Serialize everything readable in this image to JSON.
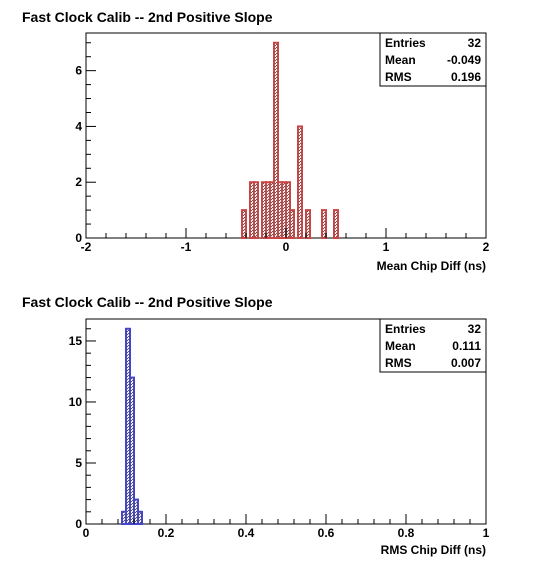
{
  "chart_data": [
    {
      "type": "bar",
      "title": "Fast Clock Calib -- 2nd Positive Slope",
      "xlabel": "Mean Chip Diff (ns)",
      "ylabel": "",
      "xlim": [
        -2,
        2
      ],
      "ylim": [
        0,
        7.35
      ],
      "x_ticks": [
        -2,
        -1,
        0,
        1,
        2
      ],
      "x_tick_labels": [
        "-2",
        "-1",
        "0",
        "1",
        "2"
      ],
      "y_ticks": [
        0,
        2,
        4,
        6
      ],
      "y_tick_labels": [
        "0",
        "2",
        "4",
        "6"
      ],
      "bin_width": 0.04,
      "bins": [
        {
          "x": -0.44,
          "count": 1
        },
        {
          "x": -0.36,
          "count": 2
        },
        {
          "x": -0.32,
          "count": 2
        },
        {
          "x": -0.24,
          "count": 2
        },
        {
          "x": -0.2,
          "count": 2
        },
        {
          "x": -0.16,
          "count": 2
        },
        {
          "x": -0.12,
          "count": 7
        },
        {
          "x": -0.08,
          "count": 2
        },
        {
          "x": -0.04,
          "count": 2
        },
        {
          "x": 0.0,
          "count": 2
        },
        {
          "x": 0.04,
          "count": 1
        },
        {
          "x": 0.12,
          "count": 4
        },
        {
          "x": 0.2,
          "count": 1
        },
        {
          "x": 0.36,
          "count": 1
        },
        {
          "x": 0.48,
          "count": 1
        }
      ],
      "color": "#cc4444",
      "stats": [
        {
          "label": "Entries",
          "value": "32"
        },
        {
          "label": "Mean",
          "value": "-0.049"
        },
        {
          "label": "RMS",
          "value": "0.196"
        }
      ]
    },
    {
      "type": "bar",
      "title": "Fast Clock Calib -- 2nd Positive Slope",
      "xlabel": "RMS Chip Diff (ns)",
      "ylabel": "",
      "xlim": [
        0,
        1
      ],
      "ylim": [
        0,
        16.8
      ],
      "x_ticks": [
        0,
        0.2,
        0.4,
        0.6,
        0.8,
        1
      ],
      "x_tick_labels": [
        "0",
        "0.2",
        "0.4",
        "0.6",
        "0.8",
        "1"
      ],
      "y_ticks": [
        0,
        5,
        10,
        15
      ],
      "y_tick_labels": [
        "0",
        "5",
        "10",
        "15"
      ],
      "bin_width": 0.01,
      "bins": [
        {
          "x": 0.09,
          "count": 1
        },
        {
          "x": 0.1,
          "count": 16
        },
        {
          "x": 0.11,
          "count": 12
        },
        {
          "x": 0.12,
          "count": 2
        },
        {
          "x": 0.13,
          "count": 1
        }
      ],
      "color": "#4444cc",
      "stats": [
        {
          "label": "Entries",
          "value": "32"
        },
        {
          "label": "Mean",
          "value": "0.111"
        },
        {
          "label": "RMS",
          "value": "0.007"
        }
      ]
    }
  ]
}
